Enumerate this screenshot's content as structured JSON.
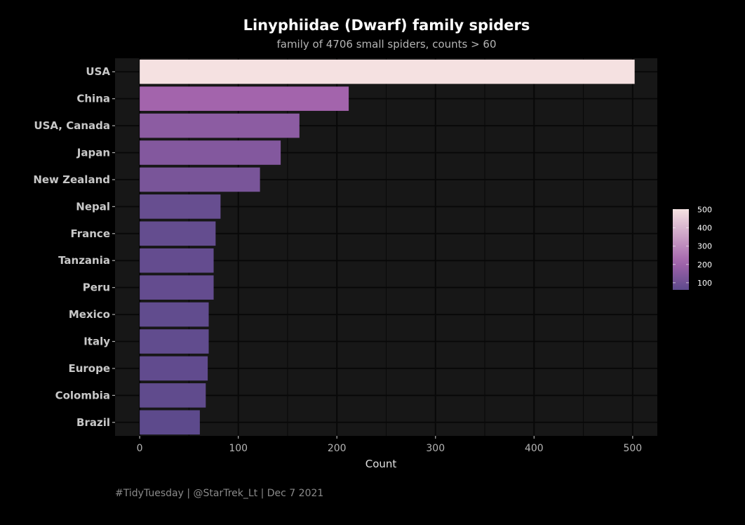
{
  "chart_data": {
    "type": "bar",
    "orientation": "horizontal",
    "title": "Linyphiidae (Dwarf) family spiders",
    "subtitle": "family of 4706 small spiders, counts > 60",
    "caption": "#TidyTuesday | @StarTrek_Lt | Dec 7 2021",
    "xlabel": "Count",
    "ylabel": "",
    "categories": [
      "USA",
      "China",
      "USA, Canada",
      "Japan",
      "New Zealand",
      "Nepal",
      "France",
      "Tanzania",
      "Peru",
      "Mexico",
      "Italy",
      "Europe",
      "Colombia",
      "Brazil"
    ],
    "values": [
      502,
      212,
      162,
      143,
      122,
      82,
      77,
      75,
      75,
      70,
      70,
      69,
      67,
      61
    ],
    "xlim": [
      -25,
      525
    ],
    "xticks": [
      "0",
      "100",
      "200",
      "300",
      "400",
      "500"
    ],
    "grid": true,
    "fill_scale": {
      "low_color": "#5d4a8c",
      "mid_color": "#a565ad",
      "high_color": "#f5e1e1",
      "range": [
        61,
        502
      ],
      "legend_ticks": [
        "100",
        "200",
        "300",
        "400",
        "500"
      ],
      "legend_position": "right"
    },
    "colors": {
      "background": "#000000",
      "panel": "#171717",
      "grid": "#080808"
    }
  }
}
